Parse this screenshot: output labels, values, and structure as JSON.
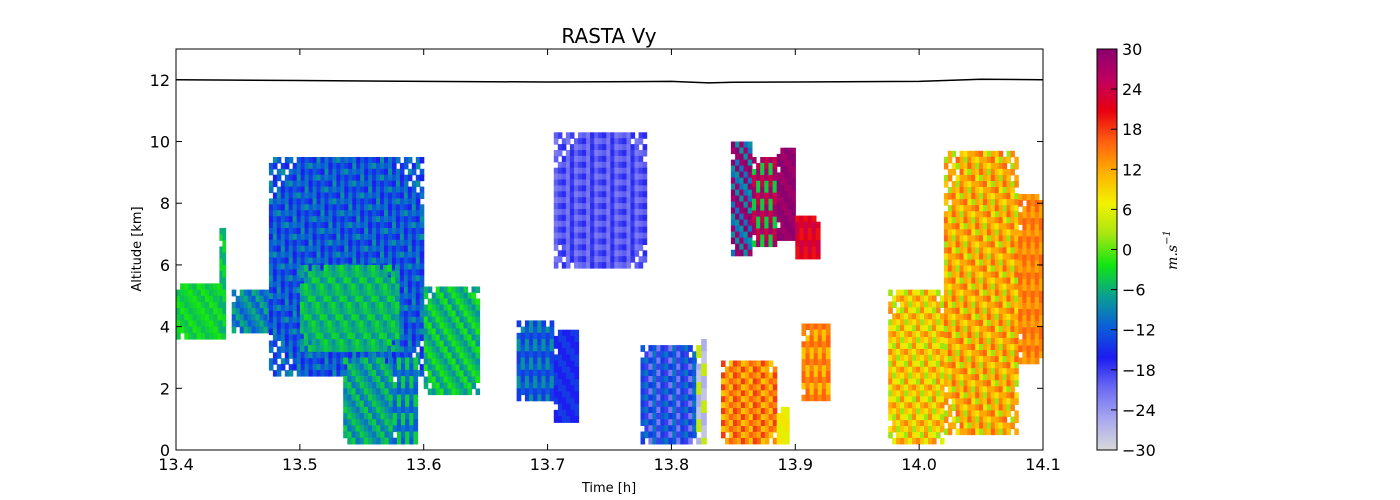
{
  "chart_data": {
    "type": "heatmap",
    "title": "RASTA Vy",
    "xlabel": "Time [h]",
    "ylabel": "Altitude [km]",
    "xlim": [
      13.4,
      14.1
    ],
    "ylim": [
      0,
      13
    ],
    "xticks": [
      "13.4",
      "13.5",
      "13.6",
      "13.7",
      "13.8",
      "13.9",
      "14.0",
      "14.1"
    ],
    "yticks": [
      "0",
      "2",
      "4",
      "6",
      "8",
      "10",
      "12"
    ],
    "colorbar": {
      "label_base": "m.s",
      "label_exp": "−1",
      "range": [
        -30,
        30
      ],
      "ticks": [
        "30",
        "24",
        "18",
        "12",
        "6",
        "0",
        "−6",
        "−12",
        "−18",
        "−24",
        "−30"
      ],
      "colors": [
        "#d9d9d9",
        "#a8a8f0",
        "#6b6bf2",
        "#1c1cf0",
        "#0a5fd8",
        "#0aa090",
        "#12e612",
        "#a8e612",
        "#f2f200",
        "#ffb000",
        "#ff6010",
        "#e80010",
        "#c00060",
        "#8a006e"
      ]
    },
    "flight_altitude_line": {
      "x": [
        13.4,
        13.5,
        13.6,
        13.7,
        13.8,
        13.83,
        13.85,
        13.9,
        14.0,
        14.05,
        14.1
      ],
      "y": [
        12.0,
        11.98,
        11.95,
        11.93,
        11.95,
        11.9,
        11.92,
        11.93,
        11.95,
        12.02,
        12.0
      ]
    },
    "regions": [
      {
        "x0": 13.4,
        "x1": 13.44,
        "y0": 3.6,
        "y1": 5.4,
        "values": [
          -4,
          -3,
          -5,
          -2
        ]
      },
      {
        "x0": 13.435,
        "x1": 13.44,
        "y0": 3.8,
        "y1": 7.2,
        "values": [
          -3,
          -6
        ]
      },
      {
        "x0": 13.445,
        "x1": 13.49,
        "y0": 3.8,
        "y1": 5.2,
        "values": [
          -8,
          -12,
          -6,
          -10
        ]
      },
      {
        "x0": 13.475,
        "x1": 13.6,
        "y0": 2.4,
        "y1": 9.5,
        "values": [
          -12,
          -14,
          -10,
          -16,
          -8,
          -12,
          -15,
          -10
        ]
      },
      {
        "x0": 13.5,
        "x1": 13.58,
        "y0": 3.2,
        "y1": 6.0,
        "values": [
          -6,
          -4,
          -8,
          -5,
          -7,
          -3
        ]
      },
      {
        "x0": 13.535,
        "x1": 13.575,
        "y0": 0.2,
        "y1": 3.0,
        "values": [
          -8,
          -4,
          -10,
          -6
        ]
      },
      {
        "x0": 13.575,
        "x1": 13.595,
        "y0": 0.2,
        "y1": 3.0,
        "values": [
          -10,
          -4,
          -12
        ]
      },
      {
        "x0": 13.6,
        "x1": 13.645,
        "y0": 1.8,
        "y1": 5.3,
        "values": [
          -6,
          -2,
          -8,
          -4
        ]
      },
      {
        "x0": 13.675,
        "x1": 13.705,
        "y0": 1.6,
        "y1": 4.2,
        "values": [
          -12,
          -14,
          -8
        ]
      },
      {
        "x0": 13.705,
        "x1": 13.725,
        "y0": 0.9,
        "y1": 3.9,
        "values": [
          -16,
          -14
        ]
      },
      {
        "x0": 13.705,
        "x1": 13.78,
        "y0": 5.9,
        "y1": 10.3,
        "values": [
          -20,
          -18,
          -22,
          -17,
          -21
        ]
      },
      {
        "x0": 13.775,
        "x1": 13.82,
        "y0": 0.2,
        "y1": 3.4,
        "values": [
          -10,
          -14,
          -18,
          -12,
          -22
        ]
      },
      {
        "x0": 13.82,
        "x1": 13.828,
        "y0": 0.2,
        "y1": 3.6,
        "values": [
          -28,
          -26,
          4
        ]
      },
      {
        "x0": 13.848,
        "x1": 13.865,
        "y0": 6.3,
        "y1": 10.0,
        "values": [
          28,
          30,
          -10,
          -8
        ]
      },
      {
        "x0": 13.865,
        "x1": 13.885,
        "y0": 6.6,
        "y1": 9.5,
        "values": [
          -4,
          28,
          24
        ]
      },
      {
        "x0": 13.885,
        "x1": 13.9,
        "y0": 6.8,
        "y1": 9.8,
        "values": [
          28,
          30
        ]
      },
      {
        "x0": 13.9,
        "x1": 13.92,
        "y0": 6.2,
        "y1": 7.6,
        "values": [
          22,
          24,
          20
        ]
      },
      {
        "x0": 13.84,
        "x1": 13.885,
        "y0": 0.2,
        "y1": 2.9,
        "values": [
          16,
          14,
          10,
          12,
          18
        ]
      },
      {
        "x0": 13.885,
        "x1": 13.895,
        "y0": 0.2,
        "y1": 1.4,
        "values": [
          6,
          8
        ]
      },
      {
        "x0": 13.905,
        "x1": 13.928,
        "y0": 1.6,
        "y1": 4.1,
        "values": [
          14,
          10,
          16
        ]
      },
      {
        "x0": 13.975,
        "x1": 14.02,
        "y0": 0.2,
        "y1": 5.2,
        "values": [
          10,
          8,
          6,
          12,
          2,
          14
        ]
      },
      {
        "x0": 14.02,
        "x1": 14.08,
        "y0": 0.5,
        "y1": 9.7,
        "values": [
          12,
          14,
          10,
          16,
          8,
          12,
          2
        ]
      },
      {
        "x0": 14.08,
        "x1": 14.1,
        "y0": 2.8,
        "y1": 8.3,
        "values": [
          14,
          16,
          12
        ]
      }
    ]
  }
}
